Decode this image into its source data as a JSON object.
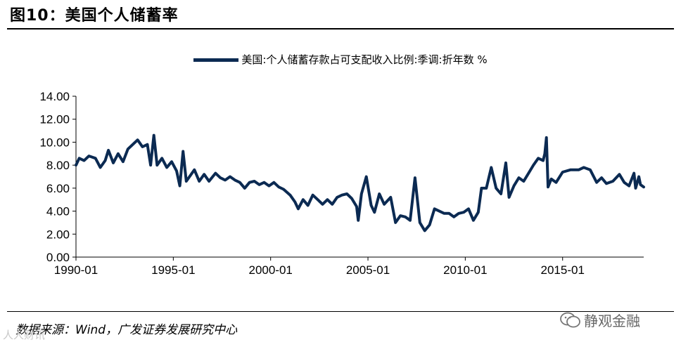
{
  "page": {
    "title": "图10：美国个人储蓄率",
    "source": "数据来源：Wind，广发证券发展研究中心",
    "brand": "静观金融",
    "watermark": "人人财讯"
  },
  "chart_data": {
    "type": "line",
    "title": "",
    "xlabel": "",
    "ylabel": "",
    "ylim": [
      0,
      14
    ],
    "yticks": [
      "0.00",
      "2.00",
      "4.00",
      "6.00",
      "8.00",
      "10.00",
      "12.00",
      "14.00"
    ],
    "xticks": [
      "1990-01",
      "1995-01",
      "2000-01",
      "2005-01",
      "2010-01",
      "2015-01"
    ],
    "xrange": [
      "1990-01",
      "2019-03"
    ],
    "grid": false,
    "legend_position": "top-center",
    "series": [
      {
        "name": "美国:个人储蓄存款占可支配收入比例:季调:折年数 %",
        "color": "#0b2a52",
        "points": [
          [
            "1990-01",
            8.0
          ],
          [
            "1990-03",
            8.6
          ],
          [
            "1990-06",
            8.4
          ],
          [
            "1990-09",
            8.8
          ],
          [
            "1991-01",
            8.6
          ],
          [
            "1991-04",
            7.8
          ],
          [
            "1991-07",
            8.4
          ],
          [
            "1991-09",
            9.3
          ],
          [
            "1991-12",
            8.2
          ],
          [
            "1992-03",
            9.0
          ],
          [
            "1992-06",
            8.3
          ],
          [
            "1992-09",
            9.4
          ],
          [
            "1992-12",
            9.8
          ],
          [
            "1993-03",
            10.2
          ],
          [
            "1993-06",
            9.6
          ],
          [
            "1993-09",
            9.8
          ],
          [
            "1993-11",
            8.0
          ],
          [
            "1994-01",
            10.6
          ],
          [
            "1994-03",
            8.0
          ],
          [
            "1994-06",
            8.6
          ],
          [
            "1994-09",
            7.8
          ],
          [
            "1994-12",
            8.3
          ],
          [
            "1995-03",
            7.5
          ],
          [
            "1995-05",
            6.2
          ],
          [
            "1995-07",
            9.2
          ],
          [
            "1995-09",
            6.6
          ],
          [
            "1995-11",
            7.0
          ],
          [
            "1996-02",
            7.6
          ],
          [
            "1996-05",
            6.6
          ],
          [
            "1996-08",
            7.2
          ],
          [
            "1996-11",
            6.6
          ],
          [
            "1997-03",
            7.3
          ],
          [
            "1997-06",
            6.9
          ],
          [
            "1997-09",
            6.7
          ],
          [
            "1997-12",
            7.0
          ],
          [
            "1998-03",
            6.7
          ],
          [
            "1998-06",
            6.5
          ],
          [
            "1998-09",
            6.0
          ],
          [
            "1998-12",
            6.5
          ],
          [
            "1999-03",
            6.6
          ],
          [
            "1999-06",
            6.3
          ],
          [
            "1999-09",
            6.5
          ],
          [
            "1999-12",
            6.2
          ],
          [
            "2000-03",
            6.5
          ],
          [
            "2000-06",
            6.1
          ],
          [
            "2000-09",
            5.9
          ],
          [
            "2001-01",
            5.4
          ],
          [
            "2001-04",
            4.8
          ],
          [
            "2001-06",
            4.2
          ],
          [
            "2001-09",
            5.0
          ],
          [
            "2001-12",
            4.5
          ],
          [
            "2002-03",
            5.4
          ],
          [
            "2002-06",
            5.0
          ],
          [
            "2002-09",
            4.6
          ],
          [
            "2002-12",
            5.0
          ],
          [
            "2003-03",
            4.6
          ],
          [
            "2003-06",
            5.2
          ],
          [
            "2003-09",
            5.4
          ],
          [
            "2003-12",
            5.5
          ],
          [
            "2004-03",
            5.1
          ],
          [
            "2004-06",
            4.4
          ],
          [
            "2004-07",
            3.2
          ],
          [
            "2004-09",
            5.5
          ],
          [
            "2004-12",
            7.0
          ],
          [
            "2005-03",
            4.5
          ],
          [
            "2005-05",
            3.9
          ],
          [
            "2005-08",
            5.5
          ],
          [
            "2005-11",
            4.6
          ],
          [
            "2006-03",
            5.2
          ],
          [
            "2006-06",
            3.0
          ],
          [
            "2006-09",
            3.6
          ],
          [
            "2006-12",
            3.5
          ],
          [
            "2007-03",
            3.2
          ],
          [
            "2007-06",
            6.9
          ],
          [
            "2007-09",
            3.0
          ],
          [
            "2007-12",
            2.3
          ],
          [
            "2008-03",
            2.8
          ],
          [
            "2008-06",
            4.2
          ],
          [
            "2008-09",
            4.0
          ],
          [
            "2008-12",
            3.8
          ],
          [
            "2009-03",
            3.8
          ],
          [
            "2009-06",
            3.5
          ],
          [
            "2009-09",
            3.8
          ],
          [
            "2009-12",
            3.9
          ],
          [
            "2010-03",
            4.2
          ],
          [
            "2010-06",
            3.2
          ],
          [
            "2010-09",
            3.9
          ],
          [
            "2010-11",
            6.0
          ],
          [
            "2011-02",
            6.0
          ],
          [
            "2011-05",
            7.8
          ],
          [
            "2011-08",
            6.0
          ],
          [
            "2011-11",
            5.5
          ],
          [
            "2012-02",
            8.2
          ],
          [
            "2012-04",
            5.2
          ],
          [
            "2012-07",
            6.2
          ],
          [
            "2012-10",
            6.9
          ],
          [
            "2013-01",
            6.6
          ],
          [
            "2013-04",
            7.3
          ],
          [
            "2013-07",
            8.0
          ],
          [
            "2013-10",
            8.6
          ],
          [
            "2014-01",
            8.4
          ],
          [
            "2014-02",
            9.0
          ],
          [
            "2014-03",
            10.4
          ],
          [
            "2014-04",
            6.1
          ],
          [
            "2014-06",
            6.8
          ],
          [
            "2014-09",
            6.5
          ],
          [
            "2015-01",
            7.4
          ],
          [
            "2015-06",
            7.6
          ],
          [
            "2015-11",
            7.6
          ],
          [
            "2016-02",
            7.8
          ],
          [
            "2016-06",
            7.6
          ],
          [
            "2016-10",
            6.5
          ],
          [
            "2017-01",
            6.9
          ],
          [
            "2017-04",
            6.4
          ],
          [
            "2017-08",
            6.6
          ],
          [
            "2017-12",
            7.2
          ],
          [
            "2018-03",
            6.5
          ],
          [
            "2018-06",
            6.2
          ],
          [
            "2018-09",
            7.3
          ],
          [
            "2018-10",
            6.0
          ],
          [
            "2018-12",
            7.0
          ],
          [
            "2019-01",
            6.3
          ],
          [
            "2019-03",
            6.1
          ]
        ]
      }
    ]
  }
}
